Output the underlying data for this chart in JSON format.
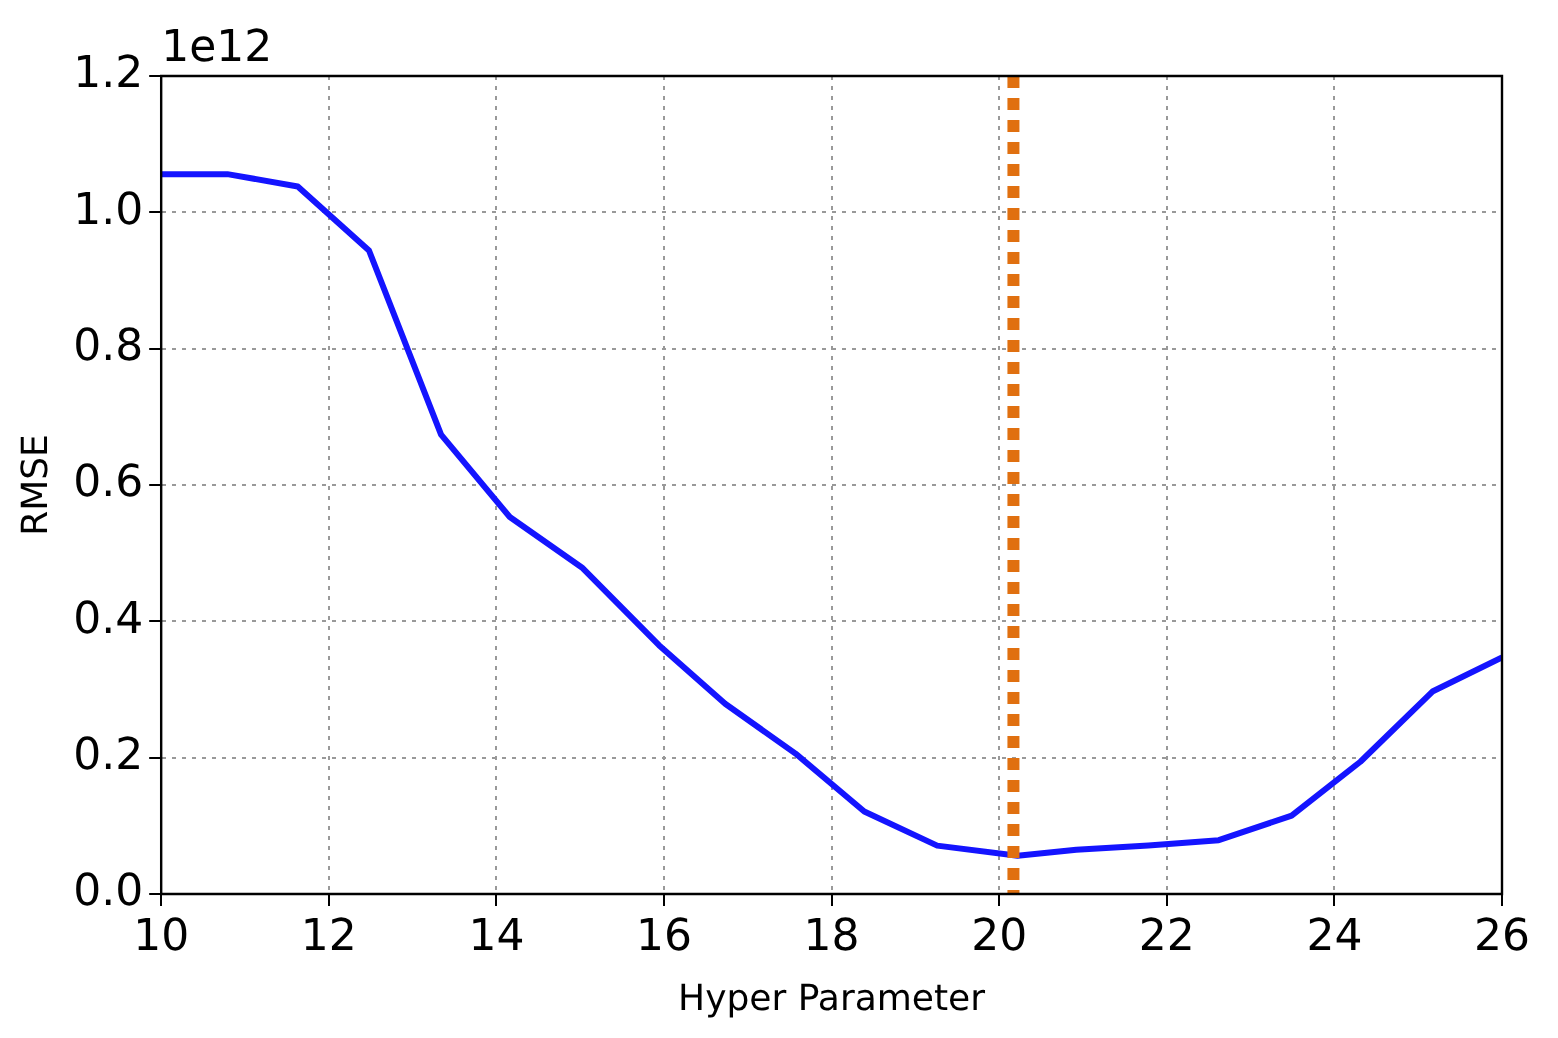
{
  "chart_data": {
    "type": "line",
    "xlabel": "Hyper Parameter",
    "ylabel": "RMSE",
    "annotations": [
      "1e12"
    ],
    "xlim": [
      10,
      26
    ],
    "xticks": [
      10,
      12,
      14,
      16,
      18,
      20,
      22,
      24,
      26
    ],
    "ylim": [
      0,
      1.2
    ],
    "yticks": [
      {
        "value": 0,
        "label": "0.0"
      },
      {
        "value": 0.2,
        "label": "0.2"
      },
      {
        "value": 0.4,
        "label": "0.4"
      },
      {
        "value": 0.6,
        "label": "0.6"
      },
      {
        "value": 0.8,
        "label": "0.8"
      },
      {
        "value": 1,
        "label": "1.0"
      },
      {
        "value": 1.2,
        "label": "1.2"
      }
    ],
    "grid": true,
    "legend": false,
    "marker": "none",
    "line_style": "solid",
    "series": [
      {
        "color": "#1414ff",
        "x": [
          10,
          10.79,
          11.63,
          12.48,
          13.34,
          14.16,
          15.02,
          15.94,
          16.73,
          17.57,
          18.39,
          19.26,
          20.22,
          20.92,
          21.78,
          22.62,
          23.49,
          24.31,
          25.17,
          26
        ],
        "values": [
          1.056,
          1.056,
          1.038,
          0.944,
          0.674,
          0.553,
          0.479,
          0.365,
          0.279,
          0.206,
          0.121,
          0.071,
          0.056,
          0.065,
          0.071,
          0.079,
          0.115,
          0.194,
          0.297,
          0.347
        ]
      }
    ],
    "ref_lines": [
      {
        "axis": "x",
        "value": 20.17,
        "color": "#e07010",
        "line_style": "dotted"
      }
    ]
  }
}
